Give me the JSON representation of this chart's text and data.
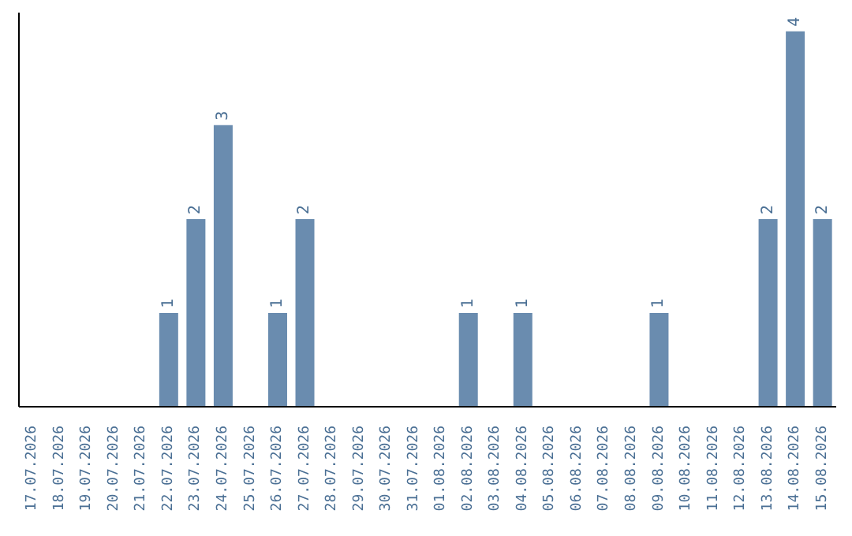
{
  "chart_data": {
    "type": "bar",
    "categories": [
      "17.07.2026",
      "18.07.2026",
      "19.07.2026",
      "20.07.2026",
      "21.07.2026",
      "22.07.2026",
      "23.07.2026",
      "24.07.2026",
      "25.07.2026",
      "26.07.2026",
      "27.07.2026",
      "28.07.2026",
      "29.07.2026",
      "30.07.2026",
      "31.07.2026",
      "01.08.2026",
      "02.08.2026",
      "03.08.2026",
      "04.08.2026",
      "05.08.2026",
      "06.08.2026",
      "07.08.2026",
      "08.08.2026",
      "09.08.2026",
      "10.08.2026",
      "11.08.2026",
      "12.08.2026",
      "13.08.2026",
      "14.08.2026",
      "15.08.2026"
    ],
    "values": [
      0,
      0,
      0,
      0,
      0,
      1,
      2,
      3,
      0,
      1,
      2,
      0,
      0,
      0,
      0,
      0,
      1,
      0,
      1,
      0,
      0,
      0,
      0,
      1,
      0,
      0,
      0,
      2,
      4,
      2
    ],
    "value_labels": [
      null,
      null,
      null,
      null,
      null,
      "1",
      "2",
      "3",
      null,
      "1",
      "2",
      null,
      null,
      null,
      null,
      null,
      "1",
      null,
      "1",
      null,
      null,
      null,
      null,
      "1",
      null,
      null,
      null,
      "2",
      "4",
      "2"
    ],
    "color": "#6a8caf",
    "grid": false,
    "legend": false,
    "tick_labels": "x"
  }
}
